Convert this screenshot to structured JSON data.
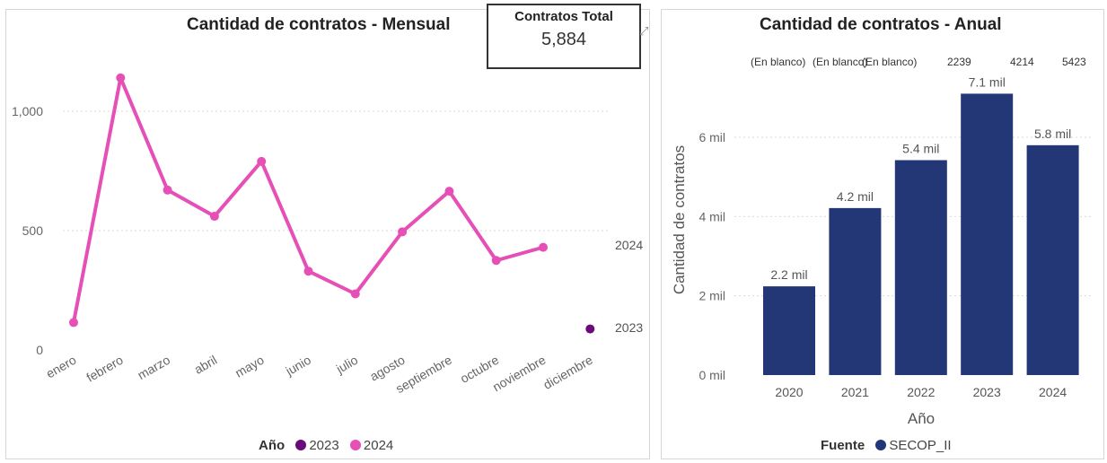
{
  "kpi": {
    "label": "Contratos Total",
    "value": "5,884"
  },
  "legend_left": {
    "title": "Año",
    "items": [
      {
        "label": "2023",
        "color": "#6b0a7a"
      },
      {
        "label": "2024",
        "color": "#e64fb5"
      }
    ]
  },
  "legend_right": {
    "title": "Fuente",
    "items": [
      {
        "label": "SECOP_II",
        "color": "#233777"
      }
    ]
  },
  "series_end_labels": {
    "s2024": "2024",
    "s2023": "2023"
  },
  "blank_row": [
    "(En blanco)",
    "(En blanco)",
    "(En blanco)",
    "2239",
    "4214",
    "5423"
  ],
  "chart_data": [
    {
      "type": "line",
      "title": "Cantidad de contratos - Mensual",
      "categories": [
        "enero",
        "febrero",
        "marzo",
        "abril",
        "mayo",
        "junio",
        "julio",
        "agosto",
        "septiembre",
        "octubre",
        "noviembre",
        "diciembre"
      ],
      "series": [
        {
          "name": "2024",
          "color": "#e64fb5",
          "values": [
            115,
            1140,
            670,
            560,
            790,
            330,
            235,
            495,
            665,
            375,
            430,
            null
          ]
        },
        {
          "name": "2023",
          "color": "#6b0a7a",
          "values": [
            null,
            null,
            null,
            null,
            null,
            null,
            null,
            null,
            null,
            null,
            null,
            88
          ]
        }
      ],
      "yticks": [
        0,
        500,
        1000
      ],
      "ytick_labels": [
        "0",
        "500",
        "1,000"
      ],
      "ylim": [
        0,
        1250
      ],
      "grid": true,
      "legend": "bottom"
    },
    {
      "type": "bar",
      "title": "Cantidad de contratos - Anual",
      "categories": [
        "2020",
        "2021",
        "2022",
        "2023",
        "2024"
      ],
      "series": [
        {
          "name": "SECOP_II",
          "color": "#233777",
          "values": [
            2239,
            4214,
            5423,
            7100,
            5800
          ]
        }
      ],
      "data_labels": [
        "2.2 mil",
        "4.2 mil",
        "5.4 mil",
        "7.1 mil",
        "5.8 mil"
      ],
      "xlabel": "Año",
      "ylabel": "Cantidad de contratos",
      "yticks": [
        0,
        2000,
        4000,
        6000
      ],
      "ytick_labels": [
        "0 mil",
        "2 mil",
        "4 mil",
        "6 mil"
      ],
      "ylim": [
        0,
        7900
      ],
      "grid": true,
      "legend": "bottom"
    }
  ]
}
